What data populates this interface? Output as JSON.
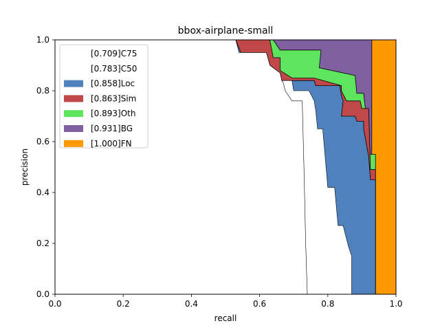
{
  "chart_data": {
    "type": "area",
    "title": "bbox-airplane-small",
    "xlabel": "recall",
    "ylabel": "precision",
    "xlim": [
      0,
      1
    ],
    "ylim": [
      0,
      1
    ],
    "xticks": [
      "0.0",
      "0.2",
      "0.4",
      "0.6",
      "0.8",
      "1.0"
    ],
    "yticks": [
      "0.0",
      "0.2",
      "0.4",
      "0.6",
      "0.8",
      "1.0"
    ],
    "legend_position": "upper-left",
    "series": [
      {
        "key": "fn",
        "name": "[1.000]FN",
        "color": "#ff9900",
        "fill": true,
        "in_legend": true,
        "points": [
          [
            0,
            1
          ],
          [
            1,
            1
          ],
          [
            1,
            0
          ],
          [
            0,
            0
          ]
        ]
      },
      {
        "key": "bg",
        "name": "[0.931]BG",
        "color": "#7f60a0",
        "fill": true,
        "in_legend": true,
        "points": [
          [
            0,
            1
          ],
          [
            0.929,
            1
          ],
          [
            0.929,
            0.55
          ],
          [
            0.935,
            0.49
          ],
          [
            0.937,
            0.2
          ],
          [
            0.94,
            0
          ],
          [
            0,
            0
          ]
        ]
      },
      {
        "key": "oth",
        "name": "[0.893]Oth",
        "color": "#5ee45e",
        "fill": true,
        "in_legend": true,
        "points": [
          [
            0,
            1
          ],
          [
            0.64,
            1
          ],
          [
            0.66,
            0.96
          ],
          [
            0.78,
            0.96
          ],
          [
            0.775,
            0.89
          ],
          [
            0.88,
            0.86
          ],
          [
            0.885,
            0.79
          ],
          [
            0.905,
            0.79
          ],
          [
            0.91,
            0.73
          ],
          [
            0.92,
            0.55
          ],
          [
            0.94,
            0.55
          ],
          [
            0.94,
            0
          ],
          [
            0,
            0
          ]
        ]
      },
      {
        "key": "sim",
        "name": "[0.863]Sim",
        "color": "#c04848",
        "fill": true,
        "in_legend": true,
        "points": [
          [
            0,
            1
          ],
          [
            0.63,
            1
          ],
          [
            0.64,
            0.93
          ],
          [
            0.66,
            0.93
          ],
          [
            0.66,
            0.88
          ],
          [
            0.695,
            0.85
          ],
          [
            0.76,
            0.85
          ],
          [
            0.84,
            0.82
          ],
          [
            0.84,
            0.8
          ],
          [
            0.855,
            0.76
          ],
          [
            0.895,
            0.76
          ],
          [
            0.9,
            0.73
          ],
          [
            0.92,
            0.73
          ],
          [
            0.925,
            0.49
          ],
          [
            0.94,
            0.49
          ],
          [
            0.94,
            0
          ],
          [
            0,
            0
          ]
        ]
      },
      {
        "key": "loc",
        "name": "[0.858]Loc",
        "color": "#4f81bd",
        "fill": true,
        "in_legend": true,
        "points": [
          [
            0,
            1
          ],
          [
            0.53,
            1
          ],
          [
            0.545,
            0.95
          ],
          [
            0.62,
            0.95
          ],
          [
            0.63,
            0.9
          ],
          [
            0.66,
            0.87
          ],
          [
            0.665,
            0.84
          ],
          [
            0.695,
            0.84
          ],
          [
            0.76,
            0.84
          ],
          [
            0.765,
            0.82
          ],
          [
            0.835,
            0.82
          ],
          [
            0.84,
            0.78
          ],
          [
            0.845,
            0.76
          ],
          [
            0.84,
            0.7
          ],
          [
            0.88,
            0.7
          ],
          [
            0.885,
            0.68
          ],
          [
            0.905,
            0.68
          ],
          [
            0.905,
            0.65
          ],
          [
            0.92,
            0.54
          ],
          [
            0.925,
            0.45
          ],
          [
            0.94,
            0.45
          ],
          [
            0.94,
            0
          ],
          [
            0,
            0
          ]
        ]
      },
      {
        "key": "c50",
        "name": "[0.783]C50",
        "color": "#ffffff",
        "fill": true,
        "in_legend": true,
        "points": [
          [
            0,
            1
          ],
          [
            0.53,
            1
          ],
          [
            0.54,
            0.95
          ],
          [
            0.62,
            0.95
          ],
          [
            0.63,
            0.9
          ],
          [
            0.66,
            0.87
          ],
          [
            0.665,
            0.84
          ],
          [
            0.695,
            0.84
          ],
          [
            0.7,
            0.8
          ],
          [
            0.745,
            0.8
          ],
          [
            0.76,
            0.76
          ],
          [
            0.765,
            0.72
          ],
          [
            0.77,
            0.65
          ],
          [
            0.785,
            0.65
          ],
          [
            0.8,
            0.42
          ],
          [
            0.82,
            0.42
          ],
          [
            0.83,
            0.27
          ],
          [
            0.845,
            0.27
          ],
          [
            0.86,
            0.19
          ],
          [
            0.87,
            0.15
          ],
          [
            0.87,
            0
          ],
          [
            0,
            0
          ]
        ]
      },
      {
        "key": "c75",
        "name": "[0.709]C75",
        "color": "#ffffff",
        "fill": true,
        "in_legend": true,
        "points": [
          [
            0,
            1
          ],
          [
            0.53,
            1
          ],
          [
            0.54,
            0.95
          ],
          [
            0.62,
            0.95
          ],
          [
            0.63,
            0.9
          ],
          [
            0.66,
            0.87
          ],
          [
            0.665,
            0.84
          ],
          [
            0.67,
            0.83
          ],
          [
            0.675,
            0.8
          ],
          [
            0.685,
            0.78
          ],
          [
            0.695,
            0.76
          ],
          [
            0.725,
            0.76
          ],
          [
            0.73,
            0.5
          ],
          [
            0.735,
            0.2
          ],
          [
            0.74,
            0
          ],
          [
            0,
            0
          ]
        ]
      }
    ]
  }
}
